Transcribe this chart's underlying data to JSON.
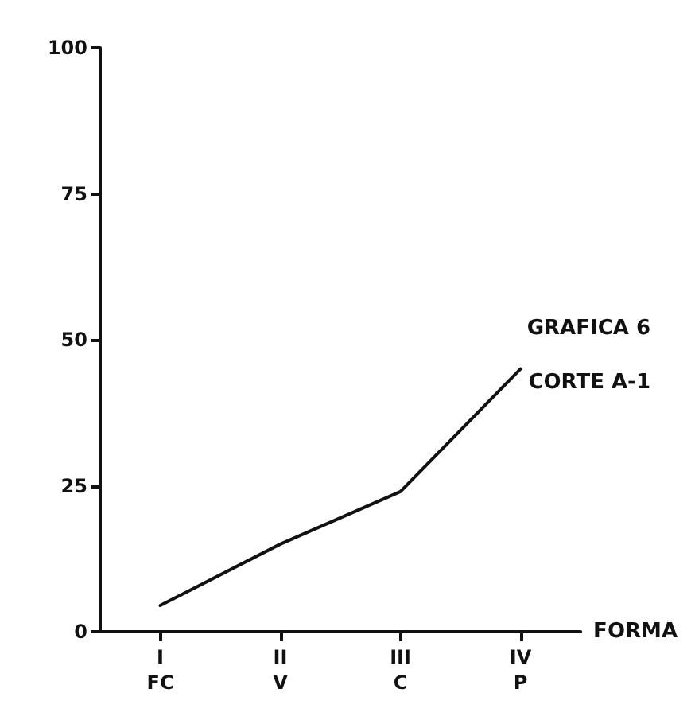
{
  "chart_data": {
    "type": "line",
    "xlabel": "FORMA",
    "categories": [
      "I\nFC",
      "II\nV",
      "III\nC",
      "IV\nP"
    ],
    "series": [
      {
        "color": "#111111",
        "values": [
          4.5,
          15,
          24,
          45
        ]
      }
    ],
    "ylim": [
      0,
      100
    ],
    "yticks": [
      0,
      25,
      50,
      75,
      100
    ],
    "grid": false,
    "marker": "none",
    "line_style": "solid",
    "annotations": [
      "GRAFICA 6",
      "CORTE A-1"
    ]
  }
}
